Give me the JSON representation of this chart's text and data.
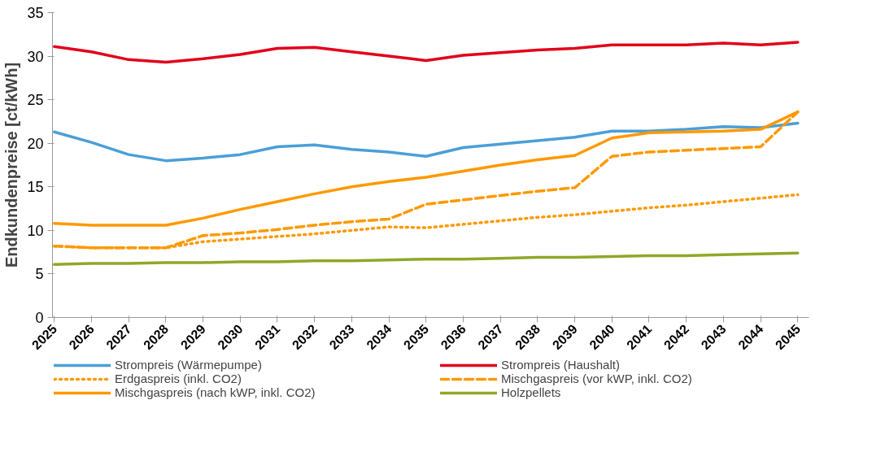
{
  "chart_data": {
    "type": "line",
    "ylabel": "Endkundenpreise [ct/kWh]",
    "categories": [
      "2025",
      "2026",
      "2027",
      "2028",
      "2029",
      "2030",
      "2031",
      "2032",
      "2033",
      "2034",
      "2035",
      "2036",
      "2037",
      "2038",
      "2039",
      "2040",
      "2041",
      "2042",
      "2043",
      "2044",
      "2045"
    ],
    "series": [
      {
        "name": "Strompreis (Wärmepumpe)",
        "color": "#4a9fd8",
        "line_style": "solid",
        "values": [
          21.3,
          20.1,
          18.7,
          18.0,
          18.3,
          18.7,
          19.6,
          19.8,
          19.3,
          19.0,
          18.5,
          19.5,
          19.9,
          20.3,
          20.7,
          21.4,
          21.4,
          21.6,
          21.9,
          21.8,
          22.3
        ]
      },
      {
        "name": "Strompreis (Haushalt)",
        "color": "#e2001a",
        "line_style": "solid",
        "values": [
          31.1,
          30.5,
          29.6,
          29.3,
          29.7,
          30.2,
          30.9,
          31.0,
          30.5,
          30.0,
          29.5,
          30.1,
          30.4,
          30.7,
          30.9,
          31.3,
          31.3,
          31.3,
          31.5,
          31.3,
          31.6
        ]
      },
      {
        "name": "Erdgaspreis (inkl. CO2)",
        "color": "#ff9900",
        "line_style": "dotted",
        "values": [
          8.2,
          8.0,
          8.0,
          8.0,
          8.7,
          9.0,
          9.3,
          9.6,
          10.0,
          10.4,
          10.3,
          10.7,
          11.1,
          11.5,
          11.8,
          12.2,
          12.6,
          12.9,
          13.3,
          13.7,
          14.1
        ]
      },
      {
        "name": "Mischgaspreis (vor kWP, inkl. CO2)",
        "color": "#ff9900",
        "line_style": "dashed",
        "values": [
          8.2,
          8.0,
          8.0,
          8.0,
          9.4,
          9.7,
          10.1,
          10.6,
          11.0,
          11.3,
          13.0,
          13.5,
          14.0,
          14.5,
          14.9,
          18.5,
          19.0,
          19.2,
          19.4,
          19.6,
          23.6
        ]
      },
      {
        "name": "Mischgaspreis (nach kWP, inkl. CO2)",
        "color": "#ff9900",
        "line_style": "solid",
        "values": [
          10.8,
          10.6,
          10.6,
          10.6,
          11.4,
          12.4,
          13.3,
          14.2,
          15.0,
          15.6,
          16.1,
          16.8,
          17.5,
          18.1,
          18.6,
          20.6,
          21.2,
          21.3,
          21.4,
          21.6,
          23.6
        ]
      },
      {
        "name": "Holzpellets",
        "color": "#8fa829",
        "line_style": "solid",
        "values": [
          6.1,
          6.2,
          6.2,
          6.3,
          6.3,
          6.4,
          6.4,
          6.5,
          6.5,
          6.6,
          6.7,
          6.7,
          6.8,
          6.9,
          6.9,
          7.0,
          7.1,
          7.1,
          7.2,
          7.3,
          7.4
        ]
      }
    ],
    "ylim": [
      0,
      35
    ],
    "yticks": [
      0,
      5,
      10,
      15,
      20,
      25,
      30,
      35
    ],
    "grid": false,
    "legend": "bottom"
  }
}
